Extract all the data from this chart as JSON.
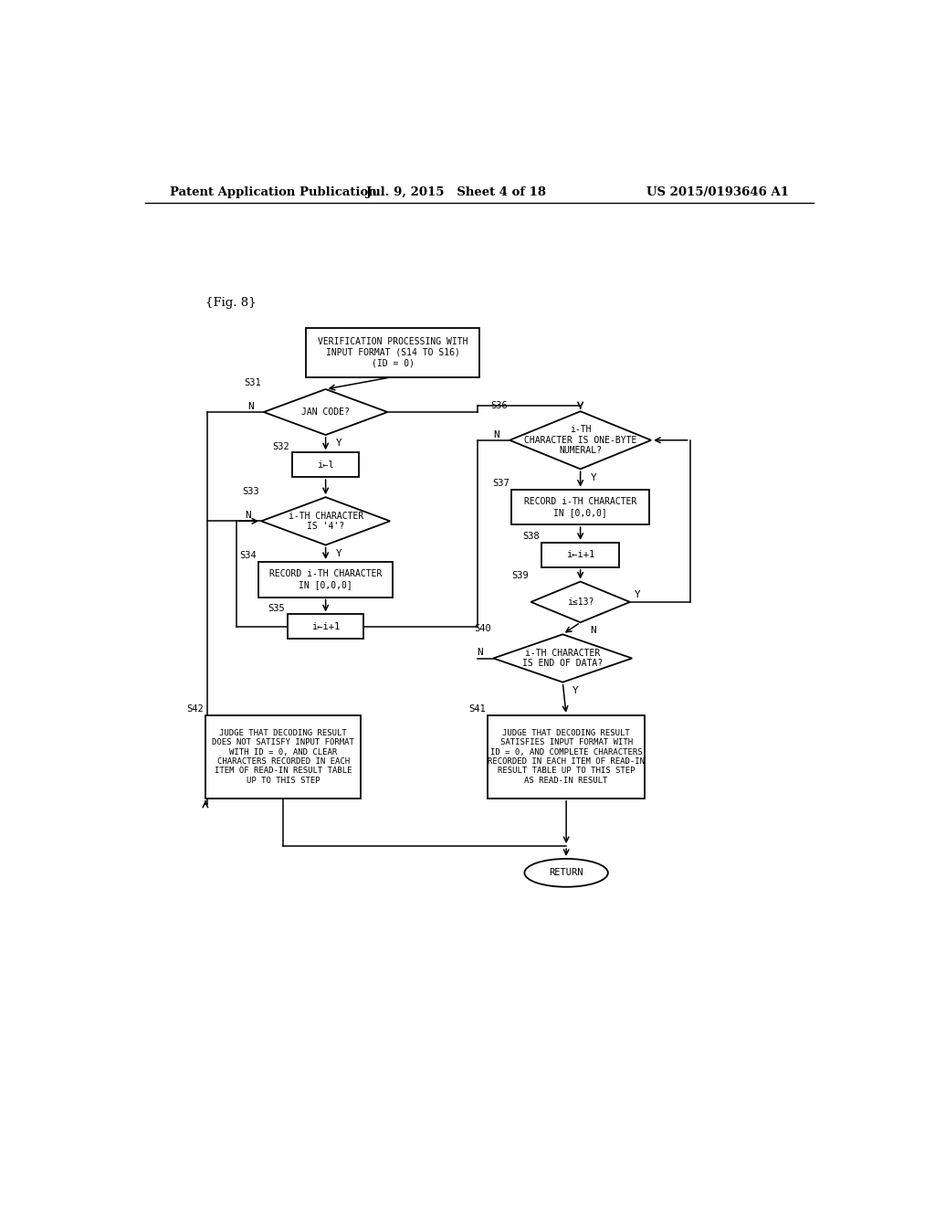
{
  "bg_color": "#ffffff",
  "header_left": "Patent Application Publication",
  "header_mid": "Jul. 9, 2015   Sheet 4 of 18",
  "header_right": "US 2015/0193646 A1",
  "fig_label": "{Fig. 8}"
}
